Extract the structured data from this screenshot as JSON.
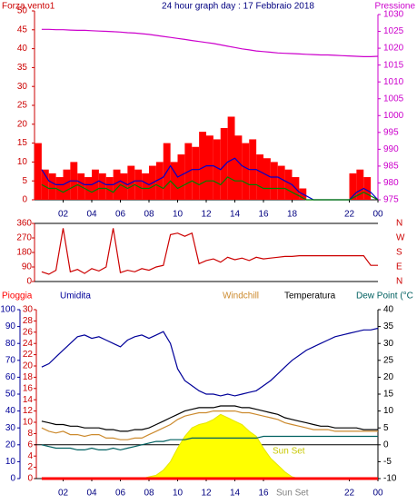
{
  "chart_data": [
    {
      "type": "line",
      "title": "24 hour graph day : 17 Febbraio 2018",
      "ylabel": "Forza vento1",
      "y2label": "Pressione",
      "xlim": [
        0,
        24
      ],
      "xticks": [
        {
          "value": 2,
          "label": "02"
        },
        {
          "value": 4,
          "label": "04"
        },
        {
          "value": 6,
          "label": "06"
        },
        {
          "value": 8,
          "label": "08"
        },
        10,
        12,
        14,
        16,
        18,
        22,
        {
          "value": 24,
          "label": "00"
        }
      ],
      "ylim": [
        0,
        50
      ],
      "yticks": [
        0,
        5,
        10,
        15,
        20,
        25,
        30,
        35,
        40,
        45,
        50
      ],
      "y2lim": [
        975,
        1030
      ],
      "y2ticks": [
        975,
        980,
        985,
        990,
        995,
        1000,
        1005,
        1010,
        1015,
        1020,
        1025,
        1030
      ],
      "x": [
        0.5,
        1,
        1.5,
        2,
        2.5,
        3,
        3.5,
        4,
        4.5,
        5,
        5.5,
        6,
        6.5,
        7,
        7.5,
        8,
        8.5,
        9,
        9.5,
        10,
        10.5,
        11,
        11.5,
        12,
        12.5,
        13,
        13.5,
        14,
        14.5,
        15,
        15.5,
        16,
        16.5,
        17,
        17.5,
        18,
        18.5,
        19,
        19.5,
        20,
        20.5,
        21,
        21.5,
        22,
        22.5,
        23,
        23.5,
        24
      ],
      "series": [
        {
          "type": "bar",
          "color": "#ff0000",
          "values": [
            15,
            8,
            7,
            6,
            8,
            10,
            7,
            6,
            8,
            7,
            6,
            8,
            7,
            9,
            8,
            7,
            9,
            10,
            15,
            10,
            12,
            15,
            14,
            18,
            17,
            16,
            19,
            22,
            17,
            15,
            16,
            12,
            11,
            10,
            9,
            8,
            6,
            3,
            0,
            0,
            0,
            0,
            0,
            0,
            7,
            8,
            6,
            0
          ]
        },
        {
          "color": "#0000cc",
          "values": [
            8,
            5,
            4,
            4,
            5,
            5,
            4,
            4,
            5,
            4,
            4,
            5,
            4,
            5,
            5,
            4,
            5,
            6,
            9,
            6,
            7,
            8,
            8,
            9,
            9,
            8,
            10,
            11,
            9,
            8,
            8,
            7,
            6,
            6,
            5,
            4,
            2,
            1,
            0,
            0,
            0,
            0,
            0,
            0,
            2,
            3,
            2,
            0
          ]
        },
        {
          "color": "#008000",
          "values": [
            4,
            3,
            3,
            2,
            3,
            4,
            3,
            2,
            3,
            3,
            2,
            4,
            3,
            4,
            3,
            3,
            4,
            3,
            5,
            3,
            4,
            5,
            4,
            5,
            5,
            4,
            6,
            5,
            5,
            4,
            4,
            3,
            3,
            3,
            3,
            2,
            1,
            0,
            0,
            0,
            0,
            0,
            0,
            0,
            1,
            2,
            1,
            0
          ]
        },
        {
          "color": "#cc00cc",
          "axis": "y2",
          "values": [
            1025.6,
            1025.6,
            1025.5,
            1025.5,
            1025.4,
            1025.3,
            1025.3,
            1025.2,
            1025.1,
            1025,
            1024.9,
            1024.8,
            1024.6,
            1024.5,
            1024.3,
            1024.1,
            1023.8,
            1023.5,
            1023.2,
            1022.9,
            1022.6,
            1022.3,
            1022,
            1021.7,
            1021.4,
            1021,
            1020.6,
            1020.2,
            1019.8,
            1019.5,
            1019.2,
            1019,
            1018.8,
            1018.6,
            1018.5,
            1018.4,
            1018.3,
            1018.2,
            1018.1,
            1018,
            1018,
            1017.9,
            1017.8,
            1017.7,
            1017.6,
            1017.5,
            1017.5,
            1017.6
          ]
        }
      ]
    },
    {
      "type": "line",
      "xlim": [
        0,
        24
      ],
      "ylim": [
        0,
        360
      ],
      "yticks": [
        0,
        90,
        180,
        270,
        360
      ],
      "y2lim": [
        0,
        360
      ],
      "y2ticks": [
        {
          "value": 360,
          "label": "N"
        },
        {
          "value": 270,
          "label": "W"
        },
        {
          "value": 180,
          "label": "S"
        },
        {
          "value": 90,
          "label": "E"
        },
        {
          "value": 0,
          "label": "N"
        }
      ],
      "x": [
        0.5,
        1,
        1.5,
        2,
        2.5,
        3,
        3.5,
        4,
        4.5,
        5,
        5.5,
        6,
        6.5,
        7,
        7.5,
        8,
        8.5,
        9,
        9.5,
        10,
        10.5,
        11,
        11.5,
        12,
        12.5,
        13,
        13.5,
        14,
        14.5,
        15,
        15.5,
        16,
        16.5,
        17,
        17.5,
        18,
        18.5,
        19,
        19.5,
        20,
        20.5,
        21,
        21.5,
        22,
        22.5,
        23,
        23.5,
        24
      ],
      "series": [
        {
          "color": "#cc0000",
          "values": [
            60,
            45,
            70,
            330,
            60,
            75,
            50,
            80,
            65,
            90,
            330,
            55,
            70,
            60,
            80,
            70,
            90,
            100,
            290,
            300,
            280,
            300,
            110,
            130,
            140,
            120,
            150,
            135,
            145,
            130,
            150,
            140,
            145,
            150,
            155,
            155,
            160,
            160,
            160,
            160,
            160,
            160,
            160,
            160,
            160,
            160,
            100,
            100
          ]
        }
      ]
    },
    {
      "type": "line",
      "xlim": [
        0,
        24
      ],
      "xticks": [
        {
          "value": 2,
          "label": "02"
        },
        {
          "value": 4,
          "label": "04"
        },
        {
          "value": 6,
          "label": "06"
        },
        {
          "value": 8,
          "label": "08"
        },
        10,
        12,
        14,
        16,
        22,
        {
          "value": 24,
          "label": "00"
        }
      ],
      "ylim": [
        0,
        100
      ],
      "yticks": [
        0,
        10,
        20,
        30,
        40,
        50,
        60,
        70,
        80,
        90,
        100
      ],
      "y3lim": [
        0,
        30
      ],
      "y3ticks": [
        0,
        2,
        4,
        6,
        8,
        10,
        12,
        14,
        16,
        18,
        20,
        22,
        24,
        26,
        28,
        30
      ],
      "y2lim": [
        -10,
        40
      ],
      "y2ticks": [
        -10,
        -5,
        0,
        5,
        10,
        15,
        20,
        25,
        30,
        35,
        40
      ],
      "zero_line": true,
      "annotations": [
        "Sun Set",
        "Sun Set"
      ],
      "x": [
        0.5,
        1,
        1.5,
        2,
        2.5,
        3,
        3.5,
        4,
        4.5,
        5,
        5.5,
        6,
        6.5,
        7,
        7.5,
        8,
        8.5,
        9,
        9.5,
        10,
        10.5,
        11,
        11.5,
        12,
        12.5,
        13,
        13.5,
        14,
        14.5,
        15,
        15.5,
        16,
        16.5,
        17,
        17.5,
        18,
        18.5,
        19,
        19.5,
        20,
        20.5,
        21,
        21.5,
        22,
        22.5,
        23,
        23.5,
        24
      ],
      "series": [
        {
          "name": "Pioggia",
          "color": "#ff0000",
          "axis": "y3",
          "values": [
            0,
            0,
            0,
            0,
            0,
            0,
            0,
            0,
            0,
            0,
            0,
            0,
            0,
            0,
            0,
            0,
            0,
            0,
            0,
            0,
            0,
            0,
            0,
            0,
            0,
            0,
            0,
            0,
            0,
            0,
            0,
            0,
            0,
            0,
            0,
            0,
            0,
            0,
            0,
            0,
            0,
            0,
            0,
            0,
            0,
            0,
            0,
            0
          ]
        },
        {
          "name": "Umidita",
          "color": "#000099",
          "values": [
            66,
            68,
            72,
            76,
            80,
            84,
            85,
            83,
            84,
            82,
            80,
            78,
            82,
            84,
            85,
            83,
            85,
            87,
            80,
            65,
            58,
            55,
            52,
            50,
            50,
            49,
            50,
            49,
            50,
            51,
            52,
            55,
            58,
            62,
            66,
            70,
            73,
            76,
            78,
            80,
            82,
            84,
            85,
            86,
            87,
            88,
            88,
            89
          ]
        },
        {
          "name": "Windchill",
          "color": "#cc8a2e",
          "axis": "y2",
          "values": [
            5,
            4,
            3.5,
            4,
            3,
            3,
            2.5,
            3,
            3,
            2,
            2,
            1.5,
            1.5,
            2,
            2,
            3,
            4,
            5,
            6,
            7.5,
            8.5,
            9,
            9.5,
            9.5,
            10,
            10,
            10,
            10,
            9.5,
            9.5,
            9,
            8.5,
            8,
            7.5,
            6.5,
            6,
            5.5,
            5,
            4.5,
            4.5,
            4.5,
            4,
            4,
            4,
            4,
            4,
            4,
            4
          ]
        },
        {
          "name": "Temperatura",
          "color": "#000000",
          "axis": "y2",
          "values": [
            7,
            6.5,
            6,
            6,
            5.5,
            5.5,
            5,
            5,
            5,
            4.5,
            4.5,
            4,
            4,
            4.5,
            4.5,
            5,
            6,
            7,
            8,
            9,
            10,
            10.5,
            11,
            11,
            11,
            11.5,
            11.5,
            11.5,
            11,
            11,
            10.5,
            10,
            9.5,
            9,
            8,
            7.5,
            7,
            6.5,
            6,
            5.5,
            5.5,
            5,
            5,
            5,
            5,
            4.5,
            4.5,
            4.5
          ]
        },
        {
          "name": "Dew Point (°C",
          "color": "#006060",
          "axis": "y2",
          "values": [
            0,
            -0.5,
            -1,
            -1,
            -1,
            -1.5,
            -1.5,
            -1,
            -1.5,
            -1.5,
            -1,
            -1.5,
            -1,
            -0.5,
            0,
            0.5,
            1,
            1,
            1.5,
            1.5,
            1.5,
            2,
            2,
            2,
            2,
            2,
            2,
            2,
            2,
            2,
            2,
            2.5,
            2.5,
            2.5,
            2.5,
            2.5,
            2.5,
            2.5,
            2.5,
            2.5,
            2.5,
            2.5,
            2.5,
            2.5,
            2.5,
            2.5,
            2.5,
            2.5
          ]
        },
        {
          "type": "area",
          "color": "#ffff00",
          "values": [
            0,
            0,
            0,
            0,
            0,
            0,
            0,
            0,
            0,
            0,
            0,
            0,
            0,
            0,
            0,
            1,
            2,
            5,
            10,
            18,
            25,
            30,
            32,
            33,
            35,
            38,
            36,
            34,
            32,
            28,
            25,
            18,
            12,
            8,
            4,
            1,
            0,
            0,
            0,
            0,
            0,
            0,
            0,
            0,
            0,
            0,
            0,
            0
          ]
        }
      ]
    }
  ]
}
